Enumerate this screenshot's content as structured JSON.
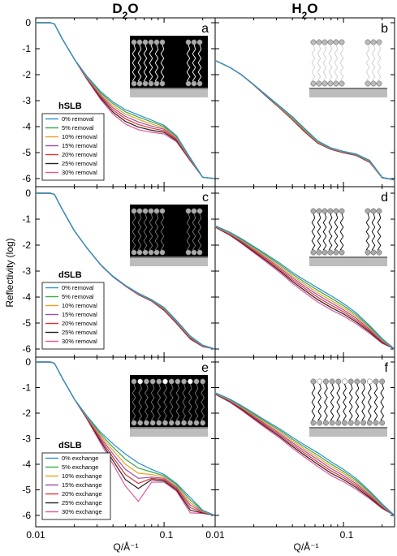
{
  "columns": [
    "D2O",
    "H2O"
  ],
  "ylabel": "Reflectivity (log)",
  "xlabel": "Q/Å⁻¹",
  "x_ticks": [
    "0.01",
    "0.1",
    "0.01",
    "0.1"
  ],
  "y_ticks": [
    "0",
    "-1",
    "-2",
    "-3",
    "-4",
    "-5",
    "-6"
  ],
  "colors": [
    "#2b8fd0",
    "#3aaa46",
    "#f0a020",
    "#9a4fa8",
    "#e3342f",
    "#222222",
    "#e9559a"
  ],
  "chart_data": [
    {
      "type": "line",
      "panel": "a",
      "group": "hSLB",
      "xlim": [
        0.01,
        0.25
      ],
      "ylim": [
        -6.3,
        0.2
      ],
      "x_scale": "log",
      "legend": [
        "0% removal",
        "5% removal",
        "10% removal",
        "15% removal",
        "20% removal",
        "25% removal",
        "30% removal"
      ],
      "x": [
        0.01,
        0.013,
        0.014,
        0.016,
        0.02,
        0.025,
        0.032,
        0.04,
        0.05,
        0.063,
        0.08,
        0.1,
        0.125,
        0.16,
        0.2,
        0.25
      ],
      "series": [
        {
          "name": "0% removal",
          "values": [
            0,
            0,
            -0.05,
            -0.6,
            -1.4,
            -2.05,
            -2.65,
            -3.05,
            -3.35,
            -3.55,
            -3.75,
            -3.95,
            -4.35,
            -5.2,
            -5.95,
            -6.0
          ]
        },
        {
          "name": "5% removal",
          "values": [
            0,
            0,
            -0.05,
            -0.6,
            -1.4,
            -2.07,
            -2.7,
            -3.12,
            -3.43,
            -3.63,
            -3.82,
            -4.0,
            -4.38,
            -5.22,
            -5.95,
            -6.0
          ]
        },
        {
          "name": "10% removal",
          "values": [
            0,
            0,
            -0.05,
            -0.6,
            -1.4,
            -2.09,
            -2.75,
            -3.2,
            -3.52,
            -3.72,
            -3.9,
            -4.05,
            -4.42,
            -5.24,
            -5.95,
            -6.0
          ]
        },
        {
          "name": "15% removal",
          "values": [
            0,
            0,
            -0.05,
            -0.6,
            -1.4,
            -2.11,
            -2.8,
            -3.28,
            -3.61,
            -3.82,
            -3.98,
            -4.1,
            -4.46,
            -5.26,
            -5.95,
            -6.0
          ]
        },
        {
          "name": "20% removal",
          "values": [
            0,
            0,
            -0.05,
            -0.6,
            -1.4,
            -2.13,
            -2.85,
            -3.36,
            -3.7,
            -3.92,
            -4.06,
            -4.16,
            -4.5,
            -5.28,
            -5.95,
            -6.0
          ]
        },
        {
          "name": "25% removal",
          "values": [
            0,
            0,
            -0.05,
            -0.6,
            -1.4,
            -2.15,
            -2.9,
            -3.44,
            -3.8,
            -4.02,
            -4.14,
            -4.22,
            -4.54,
            -5.3,
            -5.95,
            -6.0
          ]
        },
        {
          "name": "30% removal",
          "values": [
            0,
            0,
            -0.05,
            -0.6,
            -1.4,
            -2.17,
            -2.95,
            -3.52,
            -3.9,
            -4.12,
            -4.22,
            -4.28,
            -4.58,
            -5.32,
            -5.95,
            -6.0
          ]
        }
      ]
    },
    {
      "type": "line",
      "panel": "b",
      "xlim": [
        0.01,
        0.25
      ],
      "ylim": [
        -6.3,
        0.2
      ],
      "x_scale": "log",
      "x": [
        0.01,
        0.013,
        0.016,
        0.02,
        0.025,
        0.032,
        0.04,
        0.05,
        0.063,
        0.08,
        0.1,
        0.125,
        0.16,
        0.2,
        0.25
      ],
      "series": [
        {
          "values": [
            -1.45,
            -1.72,
            -2.0,
            -2.38,
            -2.78,
            -3.22,
            -3.62,
            -4.08,
            -4.55,
            -4.82,
            -4.95,
            -5.05,
            -5.3,
            -5.95,
            -6.05
          ]
        },
        {
          "values": [
            -1.45,
            -1.72,
            -2.0,
            -2.38,
            -2.79,
            -3.24,
            -3.65,
            -4.11,
            -4.57,
            -4.83,
            -4.96,
            -5.06,
            -5.32,
            -5.95,
            -6.05
          ]
        },
        {
          "values": [
            -1.45,
            -1.72,
            -2.0,
            -2.39,
            -2.8,
            -3.26,
            -3.68,
            -4.14,
            -4.59,
            -4.84,
            -4.97,
            -5.07,
            -5.34,
            -5.96,
            -6.05
          ]
        },
        {
          "values": [
            -1.45,
            -1.72,
            -2.0,
            -2.39,
            -2.81,
            -3.27,
            -3.7,
            -4.16,
            -4.61,
            -4.85,
            -4.98,
            -5.08,
            -5.35,
            -5.96,
            -6.05
          ]
        },
        {
          "values": [
            -1.45,
            -1.72,
            -2.0,
            -2.4,
            -2.82,
            -3.28,
            -3.72,
            -4.18,
            -4.62,
            -4.86,
            -4.99,
            -5.09,
            -5.36,
            -5.96,
            -6.05
          ]
        },
        {
          "values": [
            -1.45,
            -1.72,
            -2.0,
            -2.4,
            -2.83,
            -3.29,
            -3.73,
            -4.2,
            -4.63,
            -4.87,
            -5.0,
            -5.1,
            -5.37,
            -5.97,
            -6.05
          ]
        },
        {
          "values": [
            -1.45,
            -1.72,
            -2.0,
            -2.4,
            -2.83,
            -3.3,
            -3.74,
            -4.21,
            -4.64,
            -4.88,
            -5.01,
            -5.11,
            -5.38,
            -5.97,
            -6.05
          ]
        }
      ]
    },
    {
      "type": "line",
      "panel": "c",
      "group": "dSLB",
      "xlim": [
        0.01,
        0.25
      ],
      "ylim": [
        -6.3,
        0.2
      ],
      "x_scale": "log",
      "legend": [
        "0% removal",
        "5% removal",
        "10% removal",
        "15% removal",
        "20% removal",
        "25% removal",
        "30% removal"
      ],
      "x": [
        0.01,
        0.013,
        0.014,
        0.016,
        0.02,
        0.025,
        0.032,
        0.04,
        0.05,
        0.063,
        0.08,
        0.1,
        0.125,
        0.16,
        0.2,
        0.25
      ],
      "series": [
        {
          "values": [
            0,
            0,
            -0.05,
            -0.6,
            -1.45,
            -2.1,
            -2.75,
            -3.2,
            -3.55,
            -3.85,
            -4.1,
            -4.4,
            -4.9,
            -5.5,
            -5.85,
            -6.0
          ]
        },
        {
          "values": [
            0,
            0,
            -0.05,
            -0.6,
            -1.45,
            -2.1,
            -2.75,
            -3.2,
            -3.55,
            -3.86,
            -4.11,
            -4.42,
            -4.92,
            -5.52,
            -5.86,
            -6.0
          ]
        },
        {
          "values": [
            0,
            0,
            -0.05,
            -0.6,
            -1.45,
            -2.1,
            -2.75,
            -3.2,
            -3.56,
            -3.87,
            -4.12,
            -4.44,
            -4.94,
            -5.54,
            -5.87,
            -6.0
          ]
        },
        {
          "values": [
            0,
            0,
            -0.05,
            -0.6,
            -1.45,
            -2.1,
            -2.75,
            -3.21,
            -3.56,
            -3.88,
            -4.13,
            -4.46,
            -4.96,
            -5.56,
            -5.88,
            -6.0
          ]
        },
        {
          "values": [
            0,
            0,
            -0.05,
            -0.6,
            -1.45,
            -2.1,
            -2.76,
            -3.21,
            -3.57,
            -3.89,
            -4.14,
            -4.48,
            -4.98,
            -5.58,
            -5.89,
            -6.0
          ]
        },
        {
          "values": [
            0,
            0,
            -0.05,
            -0.6,
            -1.45,
            -2.1,
            -2.76,
            -3.22,
            -3.57,
            -3.9,
            -4.15,
            -4.5,
            -5.0,
            -5.6,
            -5.9,
            -6.0
          ]
        },
        {
          "values": [
            0,
            0,
            -0.05,
            -0.6,
            -1.45,
            -2.1,
            -2.76,
            -3.22,
            -3.58,
            -3.91,
            -4.16,
            -4.52,
            -5.02,
            -5.62,
            -5.91,
            -6.0
          ]
        }
      ]
    },
    {
      "type": "line",
      "panel": "d",
      "xlim": [
        0.01,
        0.25
      ],
      "ylim": [
        -6.3,
        0.2
      ],
      "x_scale": "log",
      "x": [
        0.01,
        0.013,
        0.016,
        0.02,
        0.025,
        0.032,
        0.04,
        0.05,
        0.063,
        0.08,
        0.1,
        0.125,
        0.16,
        0.2,
        0.25
      ],
      "series": [
        {
          "values": [
            -1.25,
            -1.5,
            -1.75,
            -2.05,
            -2.35,
            -2.7,
            -3.05,
            -3.35,
            -3.65,
            -3.95,
            -4.25,
            -4.6,
            -5.1,
            -5.6,
            -6.0
          ]
        },
        {
          "values": [
            -1.26,
            -1.52,
            -1.78,
            -2.09,
            -2.4,
            -2.76,
            -3.12,
            -3.43,
            -3.74,
            -4.04,
            -4.33,
            -4.67,
            -5.15,
            -5.63,
            -6.0
          ]
        },
        {
          "values": [
            -1.27,
            -1.54,
            -1.81,
            -2.13,
            -2.45,
            -2.82,
            -3.19,
            -3.51,
            -3.83,
            -4.13,
            -4.41,
            -4.74,
            -5.2,
            -5.66,
            -6.0
          ]
        },
        {
          "values": [
            -1.28,
            -1.56,
            -1.84,
            -2.17,
            -2.5,
            -2.88,
            -3.26,
            -3.59,
            -3.92,
            -4.22,
            -4.49,
            -4.81,
            -5.25,
            -5.69,
            -6.0
          ]
        },
        {
          "values": [
            -1.29,
            -1.58,
            -1.87,
            -2.21,
            -2.55,
            -2.94,
            -3.33,
            -3.67,
            -4.01,
            -4.31,
            -4.57,
            -4.88,
            -5.3,
            -5.72,
            -6.0
          ]
        },
        {
          "values": [
            -1.3,
            -1.6,
            -1.9,
            -2.25,
            -2.6,
            -3.0,
            -3.4,
            -3.75,
            -4.1,
            -4.4,
            -4.65,
            -4.95,
            -5.35,
            -5.75,
            -6.0
          ]
        },
        {
          "values": [
            -1.31,
            -1.62,
            -1.93,
            -2.29,
            -2.65,
            -3.06,
            -3.47,
            -3.83,
            -4.19,
            -4.49,
            -4.73,
            -5.02,
            -5.4,
            -5.78,
            -6.0
          ]
        }
      ]
    },
    {
      "type": "line",
      "panel": "e",
      "group": "dSLB",
      "xlim": [
        0.01,
        0.25
      ],
      "ylim": [
        -6.3,
        0.2
      ],
      "x_scale": "log",
      "legend": [
        "0% exchange",
        "5% exchange",
        "10% exchange",
        "15% exchange",
        "20% exchange",
        "25% exchange",
        "30% exchange"
      ],
      "x": [
        0.01,
        0.013,
        0.014,
        0.016,
        0.02,
        0.025,
        0.032,
        0.04,
        0.05,
        0.063,
        0.08,
        0.1,
        0.125,
        0.16,
        0.2,
        0.25
      ],
      "series": [
        {
          "values": [
            0,
            0,
            -0.05,
            -0.6,
            -1.45,
            -2.1,
            -2.75,
            -3.2,
            -3.6,
            -3.95,
            -4.2,
            -4.4,
            -4.75,
            -5.3,
            -5.8,
            -6.0
          ]
        },
        {
          "values": [
            0,
            0,
            -0.05,
            -0.6,
            -1.45,
            -2.12,
            -2.82,
            -3.33,
            -3.8,
            -4.15,
            -4.3,
            -4.45,
            -4.8,
            -5.4,
            -5.82,
            -6.0
          ]
        },
        {
          "values": [
            0,
            0,
            -0.05,
            -0.6,
            -1.45,
            -2.14,
            -2.89,
            -3.46,
            -4.0,
            -4.35,
            -4.4,
            -4.5,
            -4.85,
            -5.5,
            -5.84,
            -6.0
          ]
        },
        {
          "values": [
            0,
            0,
            -0.05,
            -0.6,
            -1.45,
            -2.16,
            -2.96,
            -3.6,
            -4.2,
            -4.55,
            -4.5,
            -4.55,
            -4.9,
            -5.6,
            -5.86,
            -6.0
          ]
        },
        {
          "values": [
            0,
            0,
            -0.05,
            -0.6,
            -1.45,
            -2.18,
            -3.03,
            -3.73,
            -4.4,
            -4.75,
            -4.55,
            -4.6,
            -4.95,
            -5.7,
            -5.88,
            -6.0
          ]
        },
        {
          "values": [
            0,
            0,
            -0.05,
            -0.6,
            -1.45,
            -2.2,
            -3.1,
            -3.86,
            -4.6,
            -4.95,
            -4.6,
            -4.65,
            -5.0,
            -5.8,
            -5.9,
            -6.0
          ]
        },
        {
          "values": [
            0,
            0,
            -0.05,
            -0.6,
            -1.45,
            -2.22,
            -3.17,
            -4.0,
            -4.85,
            -5.45,
            -4.7,
            -4.7,
            -5.05,
            -5.9,
            -5.92,
            -6.0
          ]
        }
      ]
    },
    {
      "type": "line",
      "panel": "f",
      "xlim": [
        0.01,
        0.25
      ],
      "ylim": [
        -6.3,
        0.2
      ],
      "x_scale": "log",
      "x": [
        0.01,
        0.013,
        0.016,
        0.02,
        0.025,
        0.032,
        0.04,
        0.05,
        0.063,
        0.08,
        0.1,
        0.125,
        0.16,
        0.2,
        0.25
      ],
      "series": [
        {
          "values": [
            -1.2,
            -1.45,
            -1.7,
            -2.0,
            -2.3,
            -2.62,
            -2.95,
            -3.25,
            -3.55,
            -3.9,
            -4.2,
            -4.55,
            -5.05,
            -5.55,
            -6.0
          ]
        },
        {
          "values": [
            -1.21,
            -1.47,
            -1.73,
            -2.04,
            -2.35,
            -2.68,
            -3.02,
            -3.33,
            -3.64,
            -3.99,
            -4.28,
            -4.62,
            -5.1,
            -5.58,
            -6.0
          ]
        },
        {
          "values": [
            -1.22,
            -1.49,
            -1.76,
            -2.08,
            -2.4,
            -2.74,
            -3.09,
            -3.41,
            -3.73,
            -4.08,
            -4.36,
            -4.69,
            -5.15,
            -5.61,
            -6.0
          ]
        },
        {
          "values": [
            -1.23,
            -1.51,
            -1.79,
            -2.12,
            -2.45,
            -2.8,
            -3.16,
            -3.49,
            -3.82,
            -4.17,
            -4.44,
            -4.76,
            -5.2,
            -5.64,
            -6.0
          ]
        },
        {
          "values": [
            -1.24,
            -1.53,
            -1.82,
            -2.16,
            -2.5,
            -2.86,
            -3.23,
            -3.57,
            -3.91,
            -4.26,
            -4.52,
            -4.83,
            -5.25,
            -5.67,
            -6.0
          ]
        },
        {
          "values": [
            -1.25,
            -1.55,
            -1.85,
            -2.2,
            -2.55,
            -2.92,
            -3.3,
            -3.65,
            -4.0,
            -4.35,
            -4.6,
            -4.9,
            -5.3,
            -5.7,
            -6.0
          ]
        },
        {
          "values": [
            -1.26,
            -1.57,
            -1.88,
            -2.24,
            -2.6,
            -2.98,
            -3.37,
            -3.73,
            -4.09,
            -4.44,
            -4.68,
            -4.97,
            -5.35,
            -5.73,
            -6.0
          ]
        }
      ]
    }
  ]
}
